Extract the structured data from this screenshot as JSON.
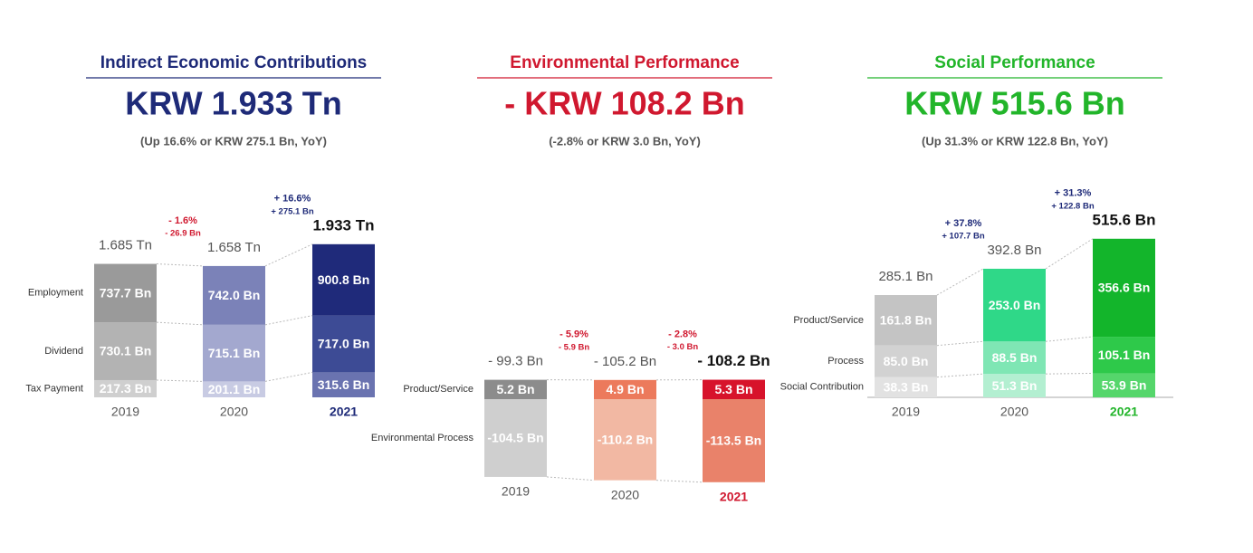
{
  "chart_data": [
    {
      "type": "bar",
      "title": "Indirect Economic Contributions",
      "headline": "KRW 1.933 Tn",
      "subtitle": "(Up 16.6% or KRW 275.1 Bn, YoY)",
      "color": "#1e2a78",
      "categories": [
        "2019",
        "2020",
        "2021"
      ],
      "series": [
        {
          "name": "Tax Payment",
          "colors": [
            "#cfcfcf",
            "#c8cbe3",
            "#6a73b0"
          ],
          "values": [
            217.3,
            201.1,
            315.6
          ],
          "value_labels": [
            "217.3 Bn",
            "201.1 Bn",
            "315.6 Bn"
          ]
        },
        {
          "name": "Dividend",
          "colors": [
            "#b3b3b3",
            "#a3a8cf",
            "#3d4b95"
          ],
          "values": [
            730.1,
            715.1,
            717.0
          ],
          "value_labels": [
            "730.1 Bn",
            "715.1 Bn",
            "717.0 Bn"
          ]
        },
        {
          "name": "Employment",
          "colors": [
            "#9a9a9a",
            "#7b82b8",
            "#1f2a7a"
          ],
          "values": [
            737.7,
            742.0,
            900.8
          ],
          "value_labels": [
            "737.7 Bn",
            "742.0 Bn",
            "900.8 Bn"
          ]
        }
      ],
      "totals": {
        "values": [
          1685,
          1658,
          1933
        ],
        "value_labels": [
          "1.685 Tn",
          "1.658 Tn",
          "1.933 Tn"
        ]
      },
      "changes": [
        null,
        {
          "pct": "- 1.6%",
          "amount": "- 26.9 Bn",
          "color": "#d0182f"
        },
        {
          "pct": "+ 16.6%",
          "amount": "+ 275.1 Bn",
          "color": "#1e2a78"
        }
      ]
    },
    {
      "type": "bar",
      "title": "Environmental Performance",
      "headline": "- KRW 108.2 Bn",
      "subtitle": "(-2.8% or KRW 3.0 Bn, YoY)",
      "color": "#d0182f",
      "categories": [
        "2019",
        "2020",
        "2021"
      ],
      "series": [
        {
          "name": "Product/Service",
          "colors": [
            "#8c8c8c",
            "#ec7a5c",
            "#d7132b"
          ],
          "values": [
            5.2,
            4.9,
            5.3
          ],
          "value_labels": [
            "5.2 Bn",
            "4.9 Bn",
            "5.3 Bn"
          ]
        },
        {
          "name": "Environmental Process",
          "colors": [
            "#cfcfcf",
            "#f2b8a3",
            "#e9826a"
          ],
          "values": [
            -104.5,
            -110.2,
            -113.5
          ],
          "value_labels": [
            "-104.5 Bn",
            "-110.2 Bn",
            "-113.5 Bn"
          ]
        }
      ],
      "totals": {
        "values": [
          -99.3,
          -105.2,
          -108.2
        ],
        "value_labels": [
          "- 99.3 Bn",
          "- 105.2 Bn",
          "- 108.2 Bn"
        ]
      },
      "changes": [
        null,
        {
          "pct": "- 5.9%",
          "amount": "- 5.9 Bn",
          "color": "#d0182f"
        },
        {
          "pct": "- 2.8%",
          "amount": "- 3.0 Bn",
          "color": "#d0182f"
        }
      ]
    },
    {
      "type": "bar",
      "title": "Social Performance",
      "headline": "KRW 515.6 Bn",
      "subtitle": "(Up 31.3% or KRW 122.8 Bn, YoY)",
      "color": "#22b52a",
      "categories": [
        "2019",
        "2020",
        "2021"
      ],
      "series": [
        {
          "name": "Social Contribution",
          "colors": [
            "#e2e2e2",
            "#b3efd1",
            "#55d66b"
          ],
          "values": [
            38.3,
            51.3,
            53.9
          ],
          "value_labels": [
            "38.3 Bn",
            "51.3 Bn",
            "53.9 Bn"
          ]
        },
        {
          "name": "Process",
          "colors": [
            "#d2d2d2",
            "#7fe6b4",
            "#2ec94a"
          ],
          "values": [
            85.0,
            88.5,
            105.1
          ],
          "value_labels": [
            "85.0 Bn",
            "88.5 Bn",
            "105.1 Bn"
          ]
        },
        {
          "name": "Product/Service",
          "colors": [
            "#c4c4c4",
            "#2fd888",
            "#13b52b"
          ],
          "values": [
            161.8,
            253.0,
            356.6
          ],
          "value_labels": [
            "161.8 Bn",
            "253.0 Bn",
            "356.6 Bn"
          ]
        }
      ],
      "totals": {
        "values": [
          285.1,
          392.8,
          515.6
        ],
        "value_labels": [
          "285.1 Bn",
          "392.8 Bn",
          "515.6 Bn"
        ]
      },
      "changes": [
        null,
        {
          "pct": "+ 37.8%",
          "amount": "+ 107.7 Bn",
          "color": "#1e2a78"
        },
        {
          "pct": "+ 31.3%",
          "amount": "+ 122.8 Bn",
          "color": "#1e2a78"
        }
      ]
    }
  ]
}
